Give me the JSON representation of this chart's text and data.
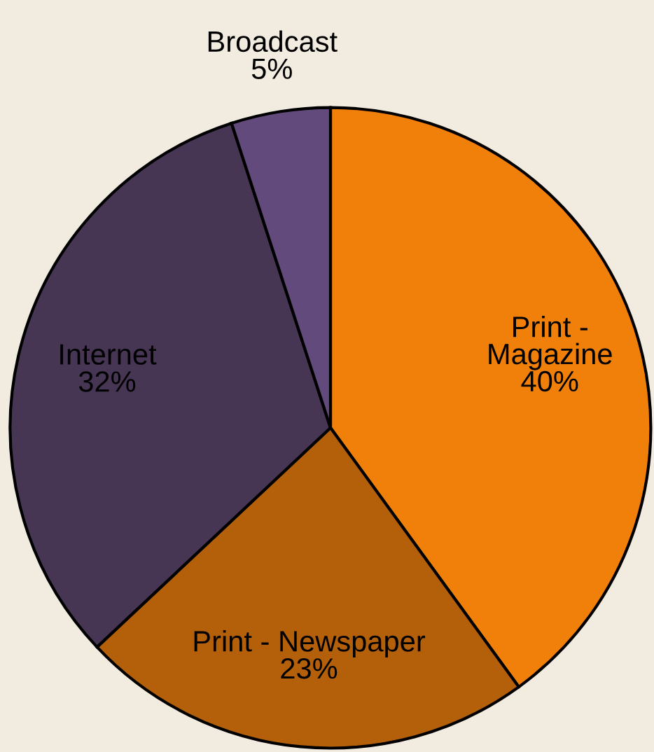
{
  "chart_data": {
    "type": "pie",
    "categories": [
      "Print -\nMagazine",
      "Print - Newspaper",
      "Internet",
      "Broadcast"
    ],
    "values": [
      40,
      23,
      32,
      5
    ],
    "colors": [
      "#f0800a",
      "#b45f0a",
      "#463654",
      "#624a7c"
    ],
    "value_labels": [
      "40%",
      "23%",
      "32%",
      "5%"
    ]
  }
}
